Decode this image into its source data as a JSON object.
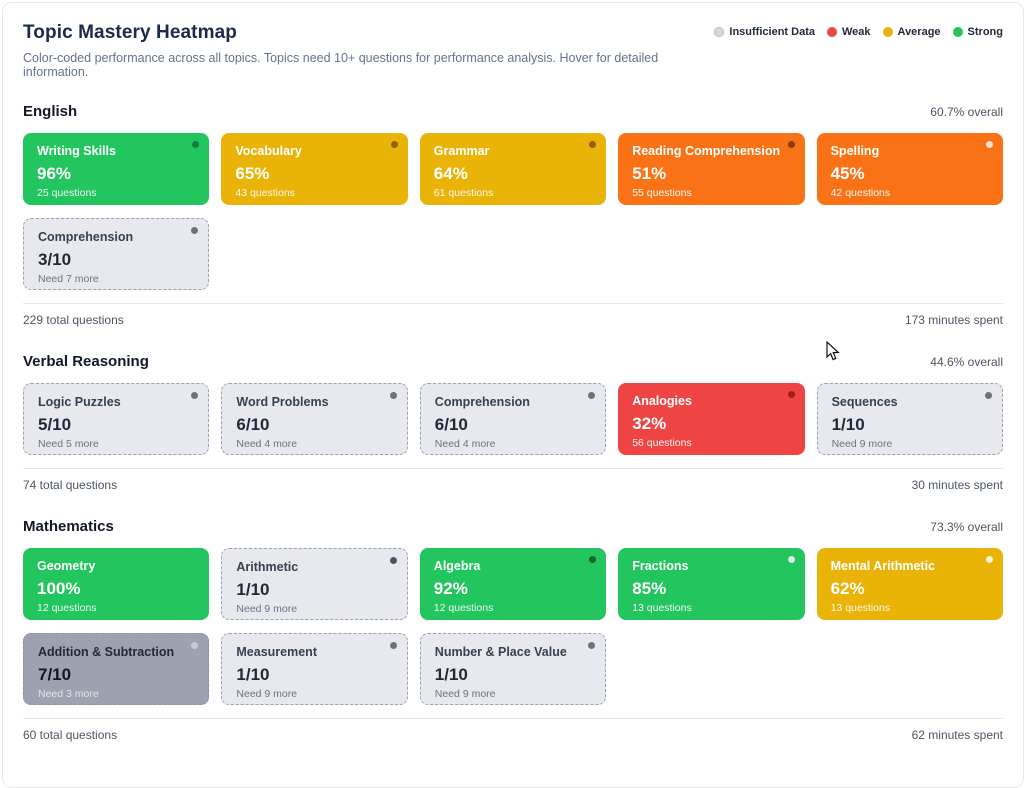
{
  "header": {
    "title": "Topic Mastery Heatmap",
    "subtitle": "Color-coded performance across all topics. Topics need 10+ questions for performance analysis. Hover for detailed information.",
    "legend": [
      {
        "label": "Insufficient Data",
        "color": "#d6dade",
        "bordered": true
      },
      {
        "label": "Weak",
        "color": "#ef4444",
        "bordered": false
      },
      {
        "label": "Average",
        "color": "#eab308",
        "bordered": false
      },
      {
        "label": "Strong",
        "color": "#22c55e",
        "bordered": false
      }
    ]
  },
  "palette": {
    "strong": "#22c55e",
    "average": "#eab308",
    "below_average": "#f97316",
    "weak": "#ef4444",
    "insufficient_bg": "#e7e9ee",
    "insufficient_dark_bg": "#9ca3af"
  },
  "sections": [
    {
      "name": "English",
      "overall": "60.7% overall",
      "total_questions": "229 total questions",
      "minutes_spent": "173 minutes spent",
      "tiles": [
        {
          "name": "Writing Skills",
          "value": "96%",
          "sub": "25 questions",
          "type": "strong",
          "dot": "#15803d"
        },
        {
          "name": "Vocabulary",
          "value": "65%",
          "sub": "43 questions",
          "type": "average",
          "dot": "#92610a"
        },
        {
          "name": "Grammar",
          "value": "64%",
          "sub": "61 questions",
          "type": "average",
          "dot": "#92610a"
        },
        {
          "name": "Reading Comprehension",
          "value": "51%",
          "sub": "55 questions",
          "type": "below_average",
          "dot": "#8a3c10"
        },
        {
          "name": "Spelling",
          "value": "45%",
          "sub": "42 questions",
          "type": "below_average",
          "dot": "#fbe3d2"
        },
        {
          "name": "Comprehension",
          "value": "3/10",
          "sub": "Need 7 more",
          "type": "insufficient",
          "dot": "#6b7280"
        }
      ]
    },
    {
      "name": "Verbal Reasoning",
      "overall": "44.6% overall",
      "total_questions": "74 total questions",
      "minutes_spent": "30 minutes spent",
      "tiles": [
        {
          "name": "Logic Puzzles",
          "value": "5/10",
          "sub": "Need 5 more",
          "type": "insufficient",
          "dot": "#6b7280"
        },
        {
          "name": "Word Problems",
          "value": "6/10",
          "sub": "Need 4 more",
          "type": "insufficient",
          "dot": "#6b7280"
        },
        {
          "name": "Comprehension",
          "value": "6/10",
          "sub": "Need 4 more",
          "type": "insufficient",
          "dot": "#6b7280"
        },
        {
          "name": "Analogies",
          "value": "32%",
          "sub": "56 questions",
          "type": "weak",
          "dot": "#9f1d1d"
        },
        {
          "name": "Sequences",
          "value": "1/10",
          "sub": "Need 9 more",
          "type": "insufficient",
          "dot": "#6b7280"
        }
      ]
    },
    {
      "name": "Mathematics",
      "overall": "73.3% overall",
      "total_questions": "60 total questions",
      "minutes_spent": "62 minutes spent",
      "tiles": [
        {
          "name": "Geometry",
          "value": "100%",
          "sub": "12 questions",
          "type": "strong",
          "dot": null
        },
        {
          "name": "Arithmetic",
          "value": "1/10",
          "sub": "Need 9 more",
          "type": "insufficient",
          "dot": "#4b5563"
        },
        {
          "name": "Algebra",
          "value": "92%",
          "sub": "12 questions",
          "type": "strong",
          "dot": "#166534"
        },
        {
          "name": "Fractions",
          "value": "85%",
          "sub": "13 questions",
          "type": "strong",
          "dot": "#d7f5e2"
        },
        {
          "name": "Mental Arithmetic",
          "value": "62%",
          "sub": "13 questions",
          "type": "average",
          "dot": "#fdf3cf"
        },
        {
          "name": "Addition & Subtraction",
          "value": "7/10",
          "sub": "Need 3 more",
          "type": "insufficient_dark",
          "dot": "#c6ccd4"
        },
        {
          "name": "Measurement",
          "value": "1/10",
          "sub": "Need 9 more",
          "type": "insufficient",
          "dot": "#6b7280"
        },
        {
          "name": "Number & Place Value",
          "value": "1/10",
          "sub": "Need 9 more",
          "type": "insufficient",
          "dot": "#6b7280"
        }
      ]
    }
  ]
}
